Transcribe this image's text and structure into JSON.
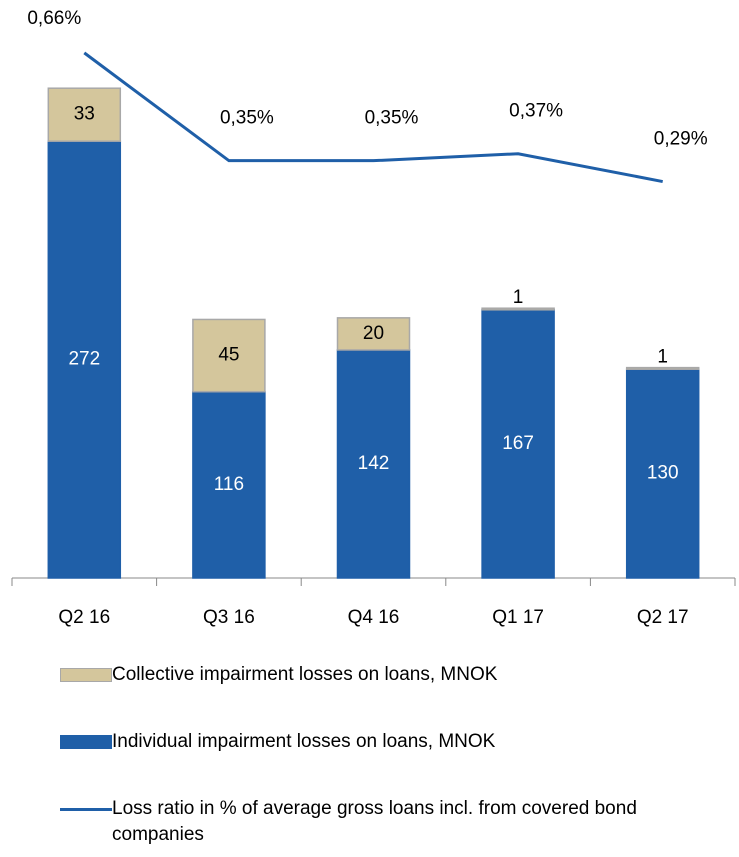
{
  "chart_data": {
    "type": "bar",
    "categories": [
      "Q2 16",
      "Q3 16",
      "Q4 16",
      "Q1 17",
      "Q2 17"
    ],
    "series": [
      {
        "name": "Collective impairment losses on loans, MNOK",
        "color": "#d4c69c",
        "values": [
          33,
          45,
          20,
          1,
          1
        ]
      },
      {
        "name": "Individual impairment losses on loans, MNOK",
        "color": "#1f5fa8",
        "values": [
          272,
          116,
          142,
          167,
          130
        ]
      },
      {
        "name": "Loss ratio in % of average gross loans incl. from covered bond companies",
        "type": "line",
        "axis": "y2",
        "color": "#1f5fa8",
        "values": [
          0.66,
          0.35,
          0.35,
          0.37,
          0.29
        ],
        "value_labels": [
          "0,66%",
          "0,35%",
          "0,35%",
          "0,37%",
          "0,29%"
        ]
      }
    ],
    "ylim": [
      0,
      340
    ],
    "y2lim": [
      -0.85,
      0.72
    ]
  }
}
